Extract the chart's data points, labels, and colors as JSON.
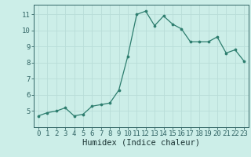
{
  "x": [
    0,
    1,
    2,
    3,
    4,
    5,
    6,
    7,
    8,
    9,
    10,
    11,
    12,
    13,
    14,
    15,
    16,
    17,
    18,
    19,
    20,
    21,
    22,
    23
  ],
  "y": [
    4.7,
    4.9,
    5.0,
    5.2,
    4.7,
    4.8,
    5.3,
    5.4,
    5.5,
    6.3,
    8.4,
    11.0,
    11.2,
    10.3,
    10.9,
    10.4,
    10.1,
    9.3,
    9.3,
    9.3,
    9.6,
    8.6,
    8.8,
    8.1
  ],
  "xlabel": "Humidex (Indice chaleur)",
  "line_color": "#2d7d6e",
  "marker_color": "#2d7d6e",
  "bg_color": "#cceee8",
  "grid_color": "#b8ddd8",
  "spine_color": "#336666",
  "text_color": "#1a3333",
  "xlim": [
    -0.5,
    23.5
  ],
  "ylim": [
    4.0,
    11.6
  ],
  "yticks": [
    5,
    6,
    7,
    8,
    9,
    10,
    11
  ],
  "xticks": [
    0,
    1,
    2,
    3,
    4,
    5,
    6,
    7,
    8,
    9,
    10,
    11,
    12,
    13,
    14,
    15,
    16,
    17,
    18,
    19,
    20,
    21,
    22,
    23
  ],
  "xlabel_fontsize": 7.5,
  "tick_fontsize": 6.5
}
